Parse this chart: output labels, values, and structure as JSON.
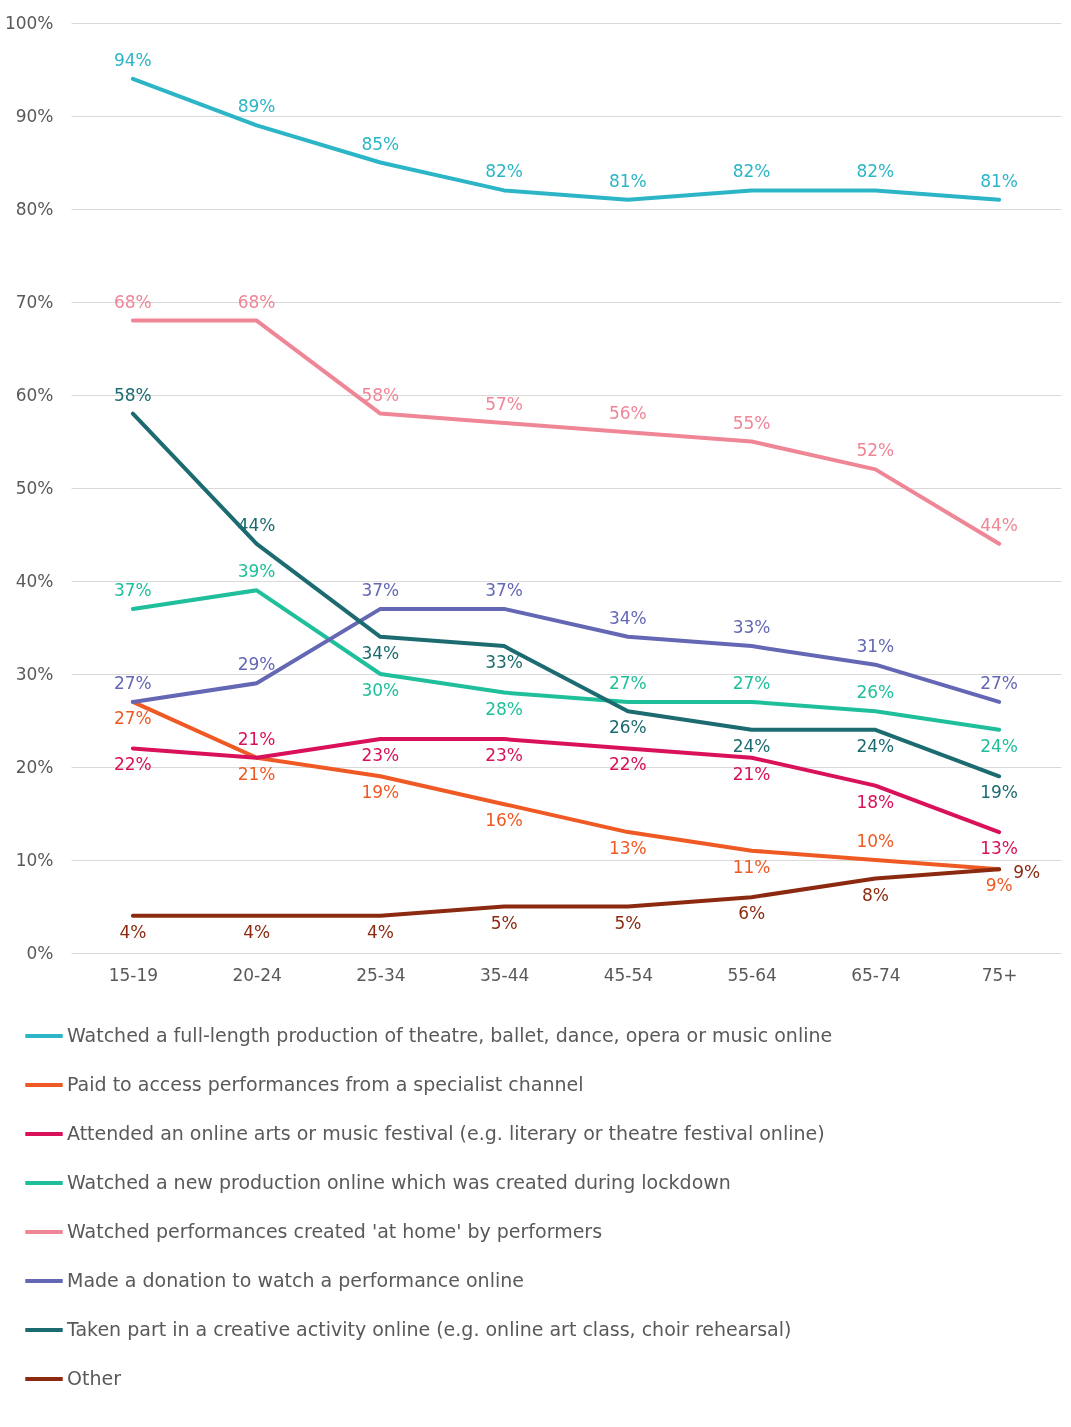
{
  "chart_data": {
    "type": "line",
    "categories": [
      "15-19",
      "20-24",
      "25-34",
      "35-44",
      "45-54",
      "55-64",
      "65-74",
      "75+"
    ],
    "ylim": [
      0,
      100
    ],
    "yticks": [
      {
        "value": 0,
        "label": "0%"
      },
      {
        "value": 10,
        "label": "10%"
      },
      {
        "value": 20,
        "label": "20%"
      },
      {
        "value": 30,
        "label": "30%"
      },
      {
        "value": 40,
        "label": "40%"
      },
      {
        "value": 50,
        "label": "50%"
      },
      {
        "value": 60,
        "label": "60%"
      },
      {
        "value": 70,
        "label": "70%"
      },
      {
        "value": 80,
        "label": "80%"
      },
      {
        "value": 90,
        "label": "90%"
      },
      {
        "value": 100,
        "label": "100%"
      }
    ],
    "grid": "y",
    "legend": "bottom",
    "series": [
      {
        "name": "Watched a full-length production of theatre, ballet, dance, opera or music online",
        "color": "#2cb5c6",
        "values": [
          94,
          89,
          85,
          82,
          81,
          82,
          82,
          81
        ],
        "value_labels": [
          "94%",
          "89%",
          "85%",
          "82%",
          "81%",
          "82%",
          "82%",
          "81%"
        ]
      },
      {
        "name": "Paid to access performances from a specialist channel",
        "color": "#ef5a24",
        "values": [
          27,
          21,
          19,
          16,
          13,
          11,
          10,
          9
        ],
        "value_labels": [
          "27%",
          "21%",
          "19%",
          "16%",
          "13%",
          "11%",
          "10%",
          "9%"
        ]
      },
      {
        "name": "Attended an online arts or music festival (e.g. literary or theatre festival online)",
        "color": "#d9105a",
        "values": [
          22,
          21,
          23,
          23,
          22,
          21,
          18,
          13
        ],
        "value_labels": [
          "22%",
          "21%",
          "23%",
          "23%",
          "22%",
          "21%",
          "18%",
          "13%"
        ]
      },
      {
        "name": "Watched a new production online which was created during lockdown",
        "color": "#1fbf9b",
        "values": [
          37,
          39,
          30,
          28,
          27,
          27,
          26,
          24
        ],
        "value_labels": [
          "37%",
          "39%",
          "30%",
          "28%",
          "27%",
          "27%",
          "26%",
          "24%"
        ]
      },
      {
        "name": "Watched performances created 'at home' by performers",
        "color": "#ef8696",
        "values": [
          68,
          68,
          58,
          57,
          56,
          55,
          52,
          44
        ],
        "value_labels": [
          "68%",
          "68%",
          "58%",
          "57%",
          "56%",
          "55%",
          "52%",
          "44%"
        ]
      },
      {
        "name": "Made a donation to watch a performance online",
        "color": "#6468b4",
        "values": [
          27,
          29,
          37,
          37,
          34,
          33,
          31,
          27
        ],
        "value_labels": [
          "27%",
          "29%",
          "37%",
          "37%",
          "34%",
          "33%",
          "31%",
          "27%"
        ]
      },
      {
        "name": "Taken part in a creative activity online (e.g. online art class, choir rehearsal)",
        "color": "#1b6b70",
        "values": [
          58,
          44,
          34,
          33,
          26,
          24,
          24,
          19
        ],
        "value_labels": [
          "58%",
          "44%",
          "34%",
          "33%",
          "26%",
          "24%",
          "24%",
          "19%"
        ]
      },
      {
        "name": "Other",
        "color": "#8b2a10",
        "values": [
          4,
          4,
          4,
          5,
          5,
          6,
          8,
          9
        ],
        "value_labels": [
          "4%",
          "4%",
          "4%",
          "5%",
          "5%",
          "6%",
          "8%",
          "9%"
        ]
      }
    ]
  }
}
